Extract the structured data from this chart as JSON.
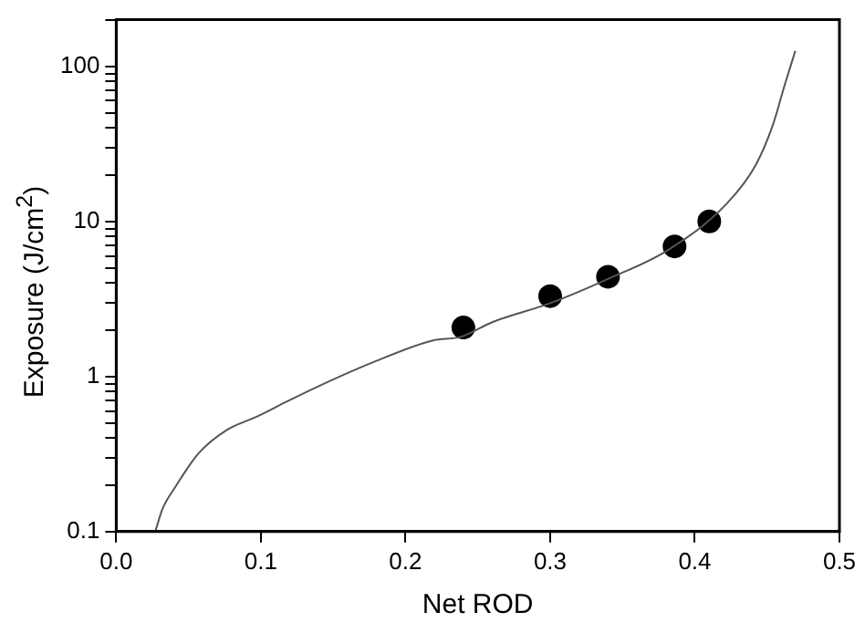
{
  "chart_data": {
    "type": "scatter",
    "xlabel": "Net ROD",
    "ylabel": "Exposure (J/cm$^{2}$)",
    "log": "y",
    "grid": false,
    "legend": false,
    "xlim": [
      0,
      0.5
    ],
    "ylim": [
      0.1,
      200
    ],
    "xticks": [
      {
        "value": 0,
        "label": "0.0"
      },
      {
        "value": 0.1,
        "label": "0.1"
      },
      {
        "value": 0.2,
        "label": "0.2"
      },
      {
        "value": 0.3,
        "label": "0.3"
      },
      {
        "value": 0.4,
        "label": "0.4"
      },
      {
        "value": 0.5,
        "label": "0.5"
      }
    ],
    "yticks": [
      0.1,
      {
        "value": 0.2,
        "label": null
      },
      {
        "value": 0.3,
        "label": null
      },
      {
        "value": 0.4,
        "label": null
      },
      {
        "value": 0.5,
        "label": null
      },
      {
        "value": 0.6,
        "label": null
      },
      {
        "value": 0.7,
        "label": null
      },
      {
        "value": 0.8,
        "label": null
      },
      {
        "value": 0.9,
        "label": null
      },
      1,
      {
        "value": 2,
        "label": null
      },
      {
        "value": 3,
        "label": null
      },
      {
        "value": 4,
        "label": null
      },
      {
        "value": 5,
        "label": null
      },
      {
        "value": 6,
        "label": null
      },
      {
        "value": 7,
        "label": null
      },
      {
        "value": 8,
        "label": null
      },
      {
        "value": 9,
        "label": null
      },
      10,
      {
        "value": 20,
        "label": null
      },
      {
        "value": 30,
        "label": null
      },
      {
        "value": 40,
        "label": null
      },
      {
        "value": 50,
        "label": null
      },
      {
        "value": 60,
        "label": null
      },
      {
        "value": 70,
        "label": null
      },
      {
        "value": 80,
        "label": null
      },
      {
        "value": 90,
        "label": null
      },
      100,
      {
        "value": 200,
        "label": null
      }
    ],
    "series": [
      {
        "type": "line",
        "marker": "none",
        "line_style": "solid",
        "color": "#555555",
        "x": [
          0.027,
          0.032,
          0.041,
          0.057,
          0.077,
          0.097,
          0.118,
          0.138,
          0.178,
          0.219,
          0.238,
          0.26,
          0.3,
          0.341,
          0.381,
          0.422,
          0.442,
          0.454,
          0.462,
          0.4695
        ],
        "values": [
          0.1,
          0.14,
          0.195,
          0.32,
          0.455,
          0.55,
          0.69,
          0.85,
          1.24,
          1.71,
          1.8,
          2.24,
          2.97,
          4.3,
          6.5,
          13,
          23,
          42,
          75,
          126
        ]
      },
      {
        "type": "scatter",
        "marker": "circle",
        "color": "#000000",
        "x": [
          0.24,
          0.3,
          0.34,
          0.386,
          0.41
        ],
        "values": [
          2.07,
          3.3,
          4.4,
          6.9,
          10
        ]
      }
    ]
  }
}
